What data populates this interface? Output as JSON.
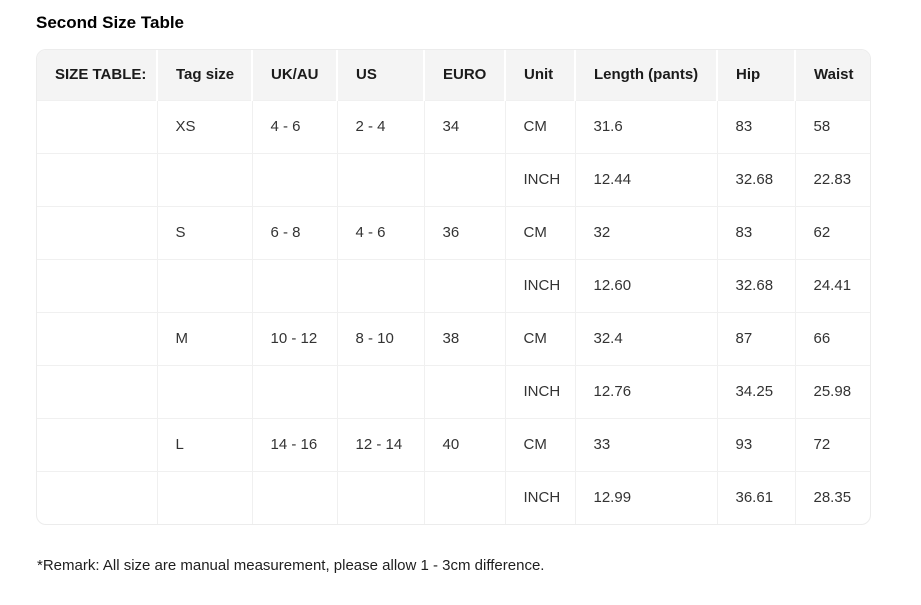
{
  "page": {
    "title": "Second Size Table",
    "remark": "*Remark: All size are manual measurement, please allow 1 - 3cm difference."
  },
  "table": {
    "columns": [
      "SIZE TABLE:",
      "Tag size",
      "UK/AU",
      "US",
      "EURO",
      "Unit",
      "Length (pants)",
      "Hip",
      "Waist"
    ],
    "rows": [
      [
        "",
        "XS",
        "4 - 6",
        "2 - 4",
        "34",
        "CM",
        "31.6",
        "83",
        "58"
      ],
      [
        "",
        "",
        "",
        "",
        "",
        "INCH",
        "12.44",
        "32.68",
        "22.83"
      ],
      [
        "",
        "S",
        "6 - 8",
        "4 - 6",
        "36",
        "CM",
        "32",
        "83",
        "62"
      ],
      [
        "",
        "",
        "",
        "",
        "",
        "INCH",
        "12.60",
        "32.68",
        "24.41"
      ],
      [
        "",
        "M",
        "10 - 12",
        "8 - 10",
        "38",
        "CM",
        "32.4",
        "87",
        "66"
      ],
      [
        "",
        "",
        "",
        "",
        "",
        "INCH",
        "12.76",
        "34.25",
        "25.98"
      ],
      [
        "",
        "L",
        "14 - 16",
        "12 - 14",
        "40",
        "CM",
        "33",
        "93",
        "72"
      ],
      [
        "",
        "",
        "",
        "",
        "",
        "INCH",
        "12.99",
        "36.61",
        "28.35"
      ]
    ]
  },
  "colors": {
    "header_bg": "#f4f4f4",
    "table_border": "#ececec",
    "cell_line": "#f0f0f0",
    "text": "#333333"
  }
}
